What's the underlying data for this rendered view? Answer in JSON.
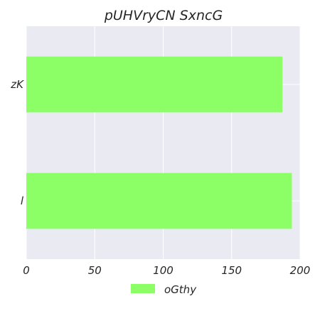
{
  "chart_data": {
    "type": "bar",
    "orientation": "horizontal",
    "title": "pUHVryCN SxncG",
    "xlabel": "",
    "ylabel": "",
    "categories": [
      "zK",
      "l"
    ],
    "series": [
      {
        "name": "oGthy",
        "values": [
          187,
          194
        ],
        "color": "#8cff66"
      }
    ],
    "xlim": [
      0,
      200
    ],
    "xticks": [
      0,
      50,
      100,
      150,
      200
    ],
    "grid": true,
    "legend_position": "bottom-center"
  },
  "colors": {
    "plot_background": "#eaeaf2",
    "grid": "#ffffff",
    "text": "#262626"
  }
}
